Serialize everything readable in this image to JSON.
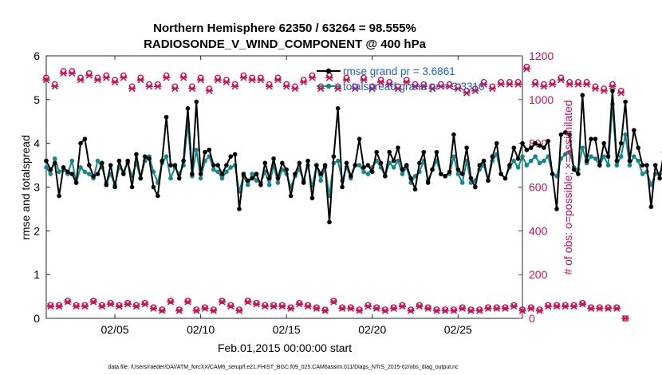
{
  "chart_data": {
    "type": "line",
    "title_line1": "Northern Hemisphere 62350 / 63264 = 98.555%",
    "title_line2": "RADIOSONDE_V_WIND_COMPONENT @ 400 hPa",
    "xlabel": "Feb.01,2015 00:00:00 start",
    "ylabel_left": "rmse and totalspread",
    "ylabel_right": "# of obs: o=possible; ×=assimilated",
    "footer": "data file: /Users/raeder/DAI/ATM_forcXX/CAM6_setup/f.e21.FHIST_BGC.f09_025.CAM6assim.011/Diags_NTrS_2015-02/obs_diag_output.nc",
    "xlim": [
      1,
      28.75
    ],
    "ylim_left": [
      0,
      6
    ],
    "ylim_right": [
      0,
      1200
    ],
    "x_ticks": [
      5,
      10,
      15,
      20,
      25
    ],
    "x_tick_labels": [
      "02/05",
      "02/10",
      "02/15",
      "02/20",
      "02/25"
    ],
    "y_left_ticks": [
      "0",
      "1",
      "2",
      "3",
      "4",
      "5",
      "6"
    ],
    "y_right_ticks": [
      "0",
      "200",
      "400",
      "600",
      "800",
      "1000",
      "1200"
    ],
    "legend": {
      "location": "top-right",
      "rmse_label": "rmse grand pr = 3.6861",
      "spread_label": "totalspread grand pr = 3.3316"
    },
    "colors": {
      "rmse": "#000000",
      "spread": "#128888",
      "obs": "#cc1155",
      "legend_text": "#1a5fd6"
    },
    "x_start": 1,
    "x_step": 0.25,
    "series": [
      {
        "name": "rmse",
        "axis": "left",
        "values": [
          3.6,
          3.4,
          3.55,
          2.8,
          3.45,
          3.35,
          3.3,
          3.1,
          4.0,
          4.1,
          3.5,
          3.25,
          3.3,
          3.55,
          3.05,
          3.5,
          3.0,
          3.6,
          3.3,
          3.6,
          3.0,
          3.75,
          3.2,
          3.7,
          3.65,
          3.0,
          2.8,
          3.6,
          4.6,
          3.5,
          3.5,
          3.2,
          3.6,
          4.8,
          3.3,
          4.95,
          3.3,
          3.8,
          3.85,
          3.5,
          3.5,
          3.3,
          3.5,
          3.7,
          3.75,
          2.5,
          3.3,
          3.15,
          3.2,
          3.3,
          3.05,
          3.55,
          3.2,
          3.65,
          3.2,
          3.55,
          3.4,
          2.8,
          3.3,
          3.55,
          3.1,
          3.6,
          2.75,
          3.5,
          3.3,
          3.5,
          2.2,
          3.7,
          4.8,
          3.0,
          3.55,
          3.25,
          3.5,
          4.1,
          3.45,
          3.5,
          3.35,
          3.8,
          3.55,
          3.25,
          3.8,
          3.6,
          3.9,
          3.4,
          3.5,
          3.2,
          2.95,
          3.55,
          3.8,
          3.1,
          3.4,
          3.8,
          3.3,
          3.25,
          3.35,
          4.2,
          3.4,
          3.3,
          3.9,
          3.2,
          3.0,
          3.5,
          3.6,
          3.15,
          3.7,
          4.0,
          3.3,
          3.2,
          3.5,
          3.9,
          3.65,
          4.0,
          3.85,
          3.9,
          4.0,
          3.95,
          3.9,
          4.05,
          3.3,
          2.5,
          4.2,
          4.25,
          4.2,
          3.4,
          3.3,
          5.1,
          3.6,
          4.1,
          4.1,
          3.5,
          4.0,
          3.7,
          5.2,
          3.6,
          4.0,
          4.95,
          3.6,
          4.3,
          3.9,
          3.5,
          3.5,
          2.55,
          3.5,
          3.2,
          3.8
        ]
      },
      {
        "name": "totalspread",
        "axis": "left",
        "values": [
          3.45,
          3.3,
          3.65,
          3.35,
          3.4,
          3.3,
          3.6,
          3.1,
          3.45,
          3.35,
          3.3,
          3.2,
          3.6,
          3.45,
          3.1,
          3.3,
          3.05,
          3.45,
          3.35,
          3.55,
          3.25,
          3.55,
          3.2,
          3.6,
          3.7,
          3.35,
          3.1,
          3.55,
          3.7,
          3.2,
          3.45,
          3.3,
          3.5,
          4.45,
          3.25,
          3.85,
          3.2,
          3.6,
          3.7,
          3.4,
          3.35,
          3.2,
          3.35,
          3.45,
          3.5,
          2.9,
          3.25,
          3.05,
          3.3,
          3.15,
          3.1,
          3.35,
          3.05,
          3.5,
          3.1,
          3.4,
          3.3,
          3.0,
          3.25,
          3.4,
          3.15,
          3.5,
          3.0,
          3.5,
          3.15,
          3.45,
          2.8,
          3.55,
          3.6,
          3.15,
          3.45,
          3.2,
          3.5,
          3.5,
          3.35,
          3.3,
          3.45,
          3.6,
          3.45,
          3.25,
          3.55,
          3.45,
          3.6,
          3.3,
          3.45,
          3.1,
          3.25,
          3.35,
          3.6,
          3.15,
          3.4,
          3.6,
          3.3,
          3.25,
          3.3,
          3.7,
          3.3,
          3.1,
          3.6,
          3.1,
          3.15,
          3.4,
          3.5,
          3.15,
          3.6,
          3.75,
          3.3,
          3.2,
          3.45,
          3.6,
          3.45,
          3.7,
          3.5,
          3.6,
          3.7,
          3.55,
          3.6,
          3.7,
          3.3,
          3.25,
          3.65,
          3.75,
          3.8,
          3.45,
          3.4,
          3.9,
          3.55,
          3.7,
          3.65,
          3.5,
          3.7,
          3.5,
          4.9,
          3.5,
          3.7,
          4.2,
          3.5,
          3.7,
          3.6,
          3.3,
          3.35,
          3.05,
          3.3,
          3.3,
          3.5
        ]
      },
      {
        "name": "obs possible",
        "axis": "right",
        "marker": "o",
        "values": [
          1100,
          60,
          1070,
          60,
          1130,
          80,
          1130,
          60,
          1100,
          60,
          1120,
          80,
          1100,
          60,
          1110,
          70,
          1090,
          60,
          1110,
          70,
          1060,
          60,
          1100,
          70,
          1070,
          50,
          1070,
          40,
          1110,
          80,
          1060,
          40,
          1110,
          80,
          1060,
          40,
          1100,
          50,
          1050,
          40,
          1100,
          80,
          1090,
          60,
          1070,
          40,
          1110,
          80,
          1100,
          70,
          1100,
          60,
          1070,
          60,
          1100,
          60,
          1070,
          50,
          1060,
          70,
          1090,
          60,
          1110,
          50,
          1060,
          40,
          1110,
          80,
          1060,
          50,
          1100,
          50,
          1060,
          40,
          1100,
          60,
          1060,
          50,
          1090,
          40,
          1080,
          50,
          1060,
          60,
          1090,
          40,
          1070,
          60,
          1070,
          50,
          1060,
          40,
          1070,
          40,
          1070,
          40,
          1060,
          50,
          1040,
          40,
          1050,
          40,
          1080,
          50,
          1060,
          50,
          1080,
          50,
          1080,
          60,
          1080,
          40,
          1150,
          50,
          1080,
          40,
          1070,
          60,
          1080,
          60,
          1100,
          60,
          1080,
          60,
          1080,
          70,
          1080,
          50,
          1060,
          50,
          1050,
          50,
          1070,
          50,
          1040,
          0
        ]
      },
      {
        "name": "obs assimilated",
        "axis": "right",
        "marker": "x",
        "values": [
          1090,
          55,
          1060,
          55,
          1120,
          75,
          1120,
          55,
          1090,
          55,
          1110,
          75,
          1090,
          55,
          1100,
          65,
          1080,
          55,
          1100,
          65,
          1050,
          55,
          1090,
          65,
          1060,
          45,
          1060,
          35,
          1100,
          75,
          1050,
          35,
          1100,
          75,
          1050,
          35,
          1090,
          45,
          1040,
          35,
          1090,
          75,
          1080,
          55,
          1060,
          35,
          1100,
          75,
          1090,
          65,
          1090,
          55,
          1060,
          55,
          1090,
          55,
          1060,
          45,
          1050,
          65,
          1080,
          55,
          1100,
          45,
          1050,
          35,
          1100,
          75,
          1050,
          45,
          1090,
          45,
          1050,
          35,
          1090,
          55,
          1050,
          45,
          1080,
          35,
          1070,
          45,
          1050,
          55,
          1080,
          35,
          1060,
          55,
          1060,
          45,
          1050,
          35,
          1060,
          35,
          1060,
          35,
          1050,
          45,
          1030,
          35,
          1040,
          35,
          1070,
          45,
          1050,
          45,
          1070,
          45,
          1070,
          55,
          1070,
          35,
          1140,
          45,
          1070,
          35,
          1060,
          55,
          1070,
          55,
          1090,
          55,
          1070,
          55,
          1070,
          65,
          1070,
          45,
          1050,
          45,
          1040,
          45,
          1060,
          45,
          1030,
          0
        ]
      }
    ]
  }
}
